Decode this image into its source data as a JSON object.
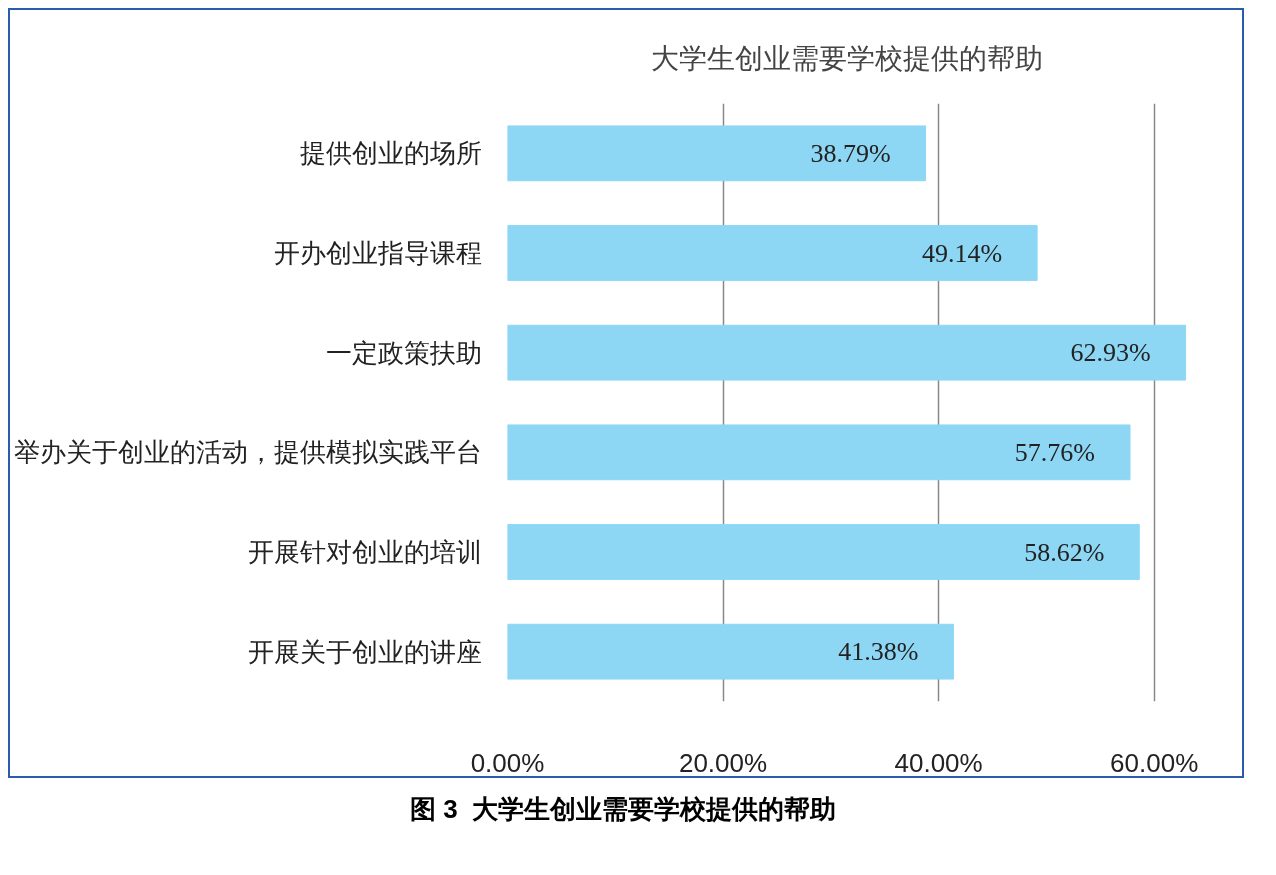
{
  "chart_data": {
    "type": "bar",
    "orientation": "horizontal",
    "title": "大学生创业需要学校提供的帮助",
    "categories": [
      "提供创业的场所",
      "开办创业指导课程",
      "一定政策扶助",
      "举办关于创业的活动，提供模拟实践平台",
      "开展针对创业的培训",
      "开展关于创业的讲座"
    ],
    "values": [
      38.79,
      49.14,
      62.93,
      57.76,
      58.62,
      41.38
    ],
    "value_labels": [
      "38.79%",
      "49.14%",
      "62.93%",
      "57.76%",
      "58.62%",
      "41.38%"
    ],
    "color": "#8dd7f5",
    "xlim": [
      0,
      63
    ],
    "xticks": [
      {
        "value": 0,
        "label": "0.00%"
      },
      {
        "value": 20,
        "label": "20.00%"
      },
      {
        "value": 40,
        "label": "40.00%"
      },
      {
        "value": 60,
        "label": "60.00%"
      }
    ],
    "grid": "x",
    "annotations": [
      "图 3  大学生创业需要学校提供的帮助"
    ]
  }
}
